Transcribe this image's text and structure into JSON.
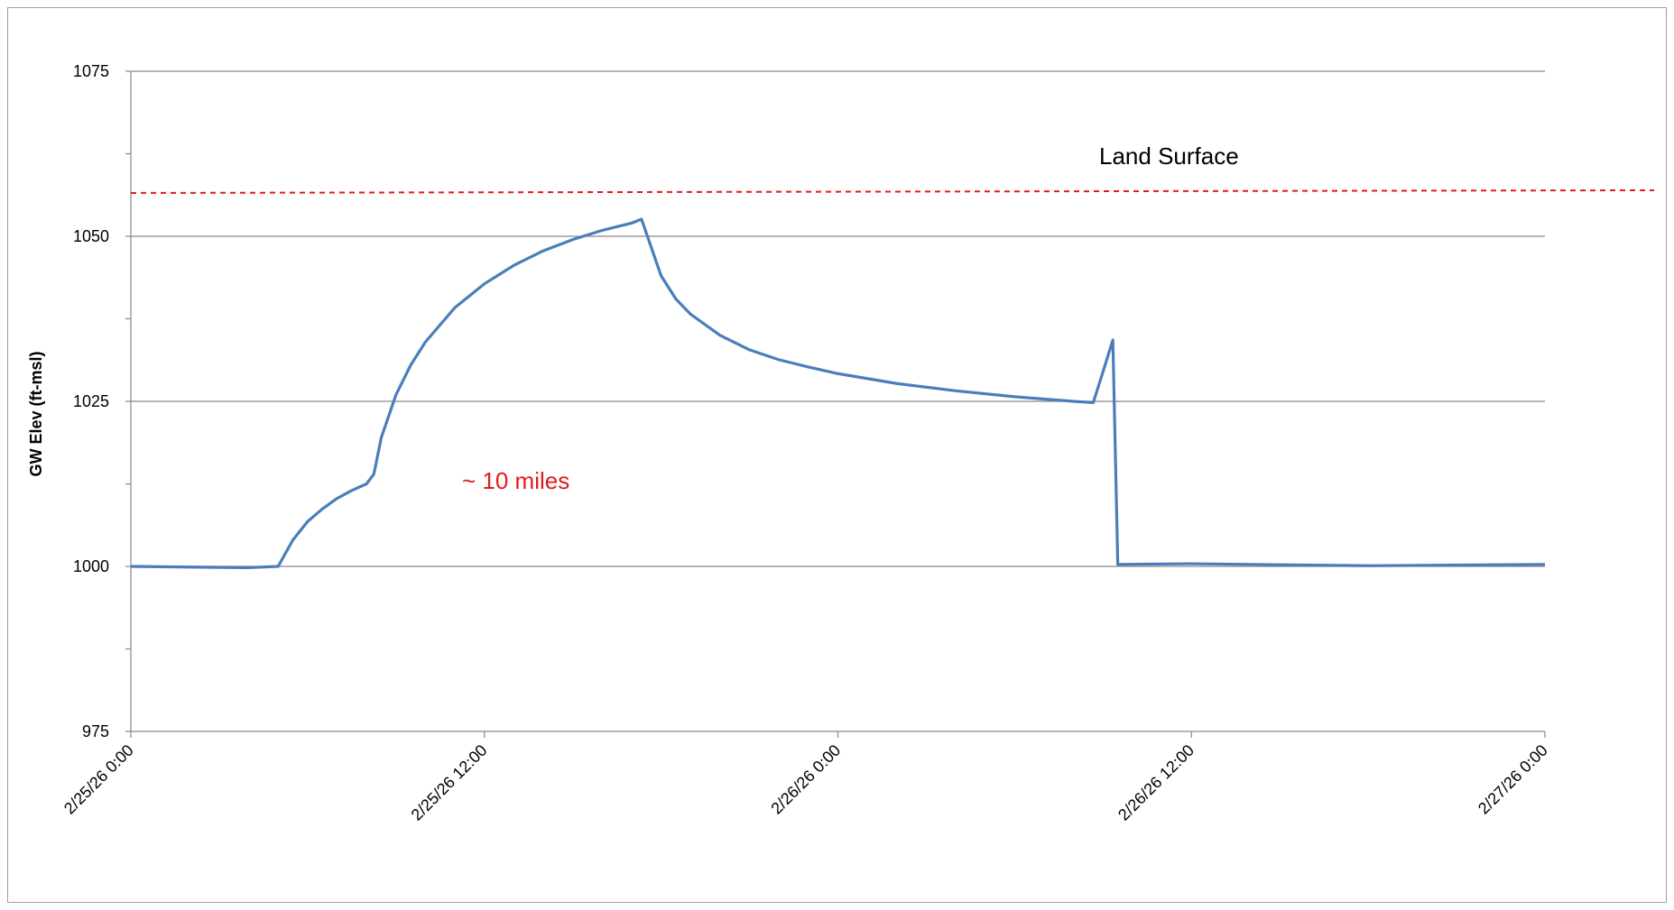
{
  "chart_data": {
    "type": "line",
    "title": "",
    "xlabel": "",
    "ylabel": "GW Elev (ft-msl)",
    "ylim": [
      975,
      1075
    ],
    "yticks": [
      975,
      1000,
      1025,
      1050,
      1075
    ],
    "xlim": [
      "2/25/26 0:00",
      "2/27/26 0:00"
    ],
    "xticks": [
      "2/25/26 0:00",
      "2/25/26 12:00",
      "2/26/26 0:00",
      "2/26/26 12:00",
      "2/27/26 0:00"
    ],
    "grid": "horizontal",
    "legend": "none",
    "series": [
      {
        "color": "#4a7ebb",
        "points": [
          [
            "2/25/26 0:00",
            1000
          ],
          [
            "2/25/26 2:00",
            999.9
          ],
          [
            "2/25/26 4:00",
            999.8
          ],
          [
            "2/25/26 5:00",
            1000
          ],
          [
            "2/25/26 5:30",
            1004
          ],
          [
            "2/25/26 6:00",
            1006.8
          ],
          [
            "2/25/26 6:30",
            1008.7
          ],
          [
            "2/25/26 7:00",
            1010.3
          ],
          [
            "2/25/26 7:30",
            1011.5
          ],
          [
            "2/25/26 8:00",
            1012.5
          ],
          [
            "2/25/26 8:15",
            1014
          ],
          [
            "2/25/26 8:30",
            1019.5
          ],
          [
            "2/25/26 9:00",
            1026
          ],
          [
            "2/25/26 9:30",
            1030.5
          ],
          [
            "2/25/26 10:00",
            1034
          ],
          [
            "2/25/26 11:00",
            1039.2
          ],
          [
            "2/25/26 12:00",
            1042.8
          ],
          [
            "2/25/26 13:00",
            1045.6
          ],
          [
            "2/25/26 14:00",
            1047.8
          ],
          [
            "2/25/26 15:00",
            1049.5
          ],
          [
            "2/25/26 16:00",
            1050.9
          ],
          [
            "2/25/26 17:00",
            1052
          ],
          [
            "2/25/26 17:20",
            1052.6
          ],
          [
            "2/25/26 17:40",
            1048.3
          ],
          [
            "2/25/26 18:00",
            1044
          ],
          [
            "2/25/26 18:30",
            1040.5
          ],
          [
            "2/25/26 19:00",
            1038.2
          ],
          [
            "2/25/26 20:00",
            1035
          ],
          [
            "2/25/26 21:00",
            1032.8
          ],
          [
            "2/25/26 22:00",
            1031.3
          ],
          [
            "2/25/26 23:00",
            1030.2
          ],
          [
            "2/26/26 0:00",
            1029.2
          ],
          [
            "2/26/26 2:00",
            1027.7
          ],
          [
            "2/26/26 4:00",
            1026.6
          ],
          [
            "2/26/26 6:00",
            1025.7
          ],
          [
            "2/26/26 8:00",
            1025
          ],
          [
            "2/26/26 8:40",
            1024.8
          ],
          [
            "2/26/26 9:00",
            1029.5
          ],
          [
            "2/26/26 9:20",
            1034.3
          ],
          [
            "2/26/26 9:30",
            1000.3
          ],
          [
            "2/26/26 12:00",
            1000.4
          ],
          [
            "2/26/26 18:00",
            1000.1
          ],
          [
            "2/27/26 0:00",
            1000.3
          ]
        ]
      }
    ],
    "land_surface": {
      "label": "Land Surface",
      "value": 1056.7,
      "color": "#e31a1c"
    },
    "annotations": [
      {
        "text": "Land Surface",
        "color": "#000000"
      },
      {
        "text": "~ 10 miles",
        "color": "#e31a1c"
      }
    ]
  }
}
